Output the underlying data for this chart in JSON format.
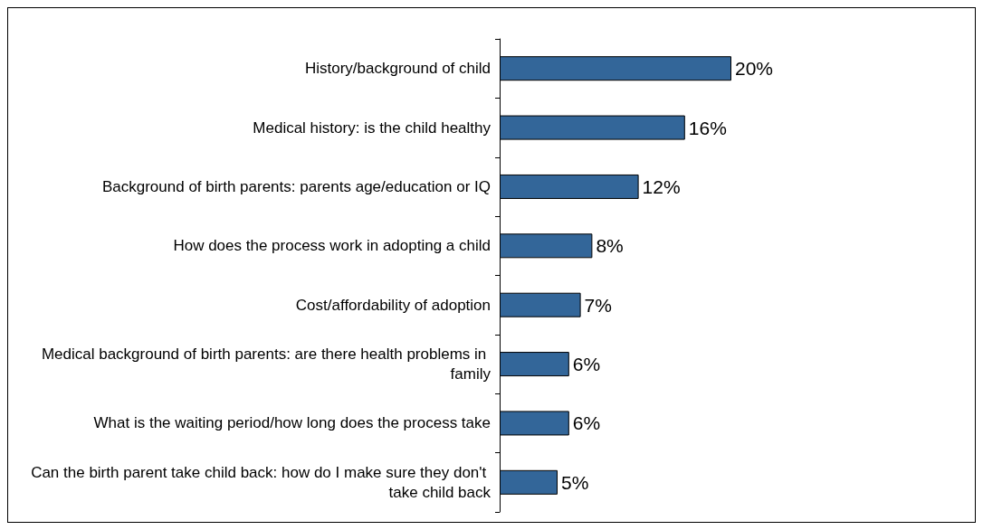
{
  "chart_data": {
    "type": "bar",
    "orientation": "horizontal",
    "categories": [
      "History/background of child",
      "Medical history: is the child healthy",
      "Background of birth parents: parents age/education or IQ",
      "How does the process work in adopting a child",
      "Cost/affordability of adoption",
      "Medical background of birth parents: are there health problems in family",
      "What is the waiting period/how long does the process take",
      "Can the birth parent take child back: how do I make sure they don't take child back"
    ],
    "values": [
      20,
      16,
      12,
      8,
      7,
      6,
      6,
      5
    ],
    "color": "#336699",
    "value_labels": [
      "20%",
      "16%",
      "12%",
      "8%",
      "7%",
      "6%",
      "6%",
      "5%"
    ]
  }
}
